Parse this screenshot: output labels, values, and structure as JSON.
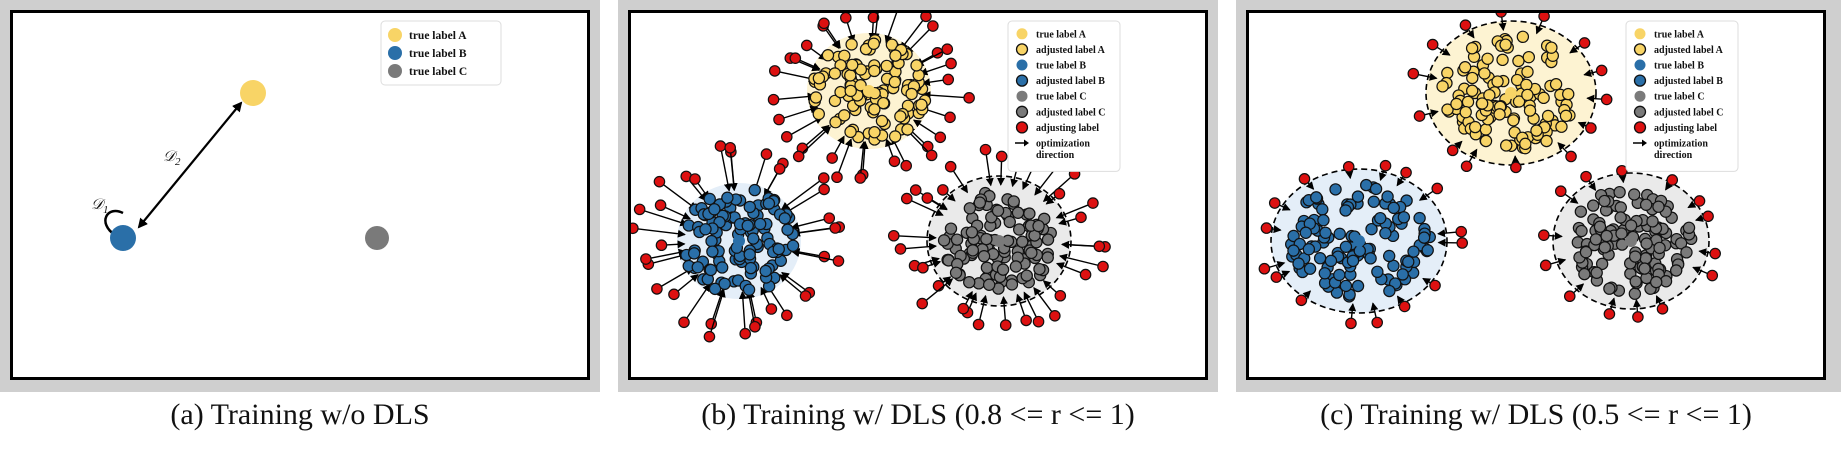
{
  "colors": {
    "label_a": "#f8d466",
    "label_b": "#2a6fa8",
    "label_c": "#7a7a7a",
    "adjusting": "#dd1111",
    "region_a": "#fdf3d2",
    "region_b": "#e4eef8",
    "region_c": "#eaeaea"
  },
  "panels": [
    {
      "caption": "(a) Training w/o DLS",
      "annotations": {
        "d1": "𝒟",
        "d1_sub": "1",
        "d2": "𝒟",
        "d2_sub": "2"
      },
      "legend": [
        {
          "label": "true label A",
          "marker": "dot-a"
        },
        {
          "label": "true label B",
          "marker": "dot-b"
        },
        {
          "label": "true label C",
          "marker": "dot-c"
        }
      ]
    },
    {
      "caption": "(b) Training w/ DLS (0.8 <= r <= 1)",
      "legend": [
        {
          "label": "true label A",
          "marker": "dot-a"
        },
        {
          "label": "adjusted label A",
          "marker": "ring-a"
        },
        {
          "label": "true label B",
          "marker": "dot-b"
        },
        {
          "label": "adjusted label B",
          "marker": "ring-b"
        },
        {
          "label": "true label C",
          "marker": "dot-c"
        },
        {
          "label": "adjusted label C",
          "marker": "ring-c"
        },
        {
          "label": "adjusting label",
          "marker": "ring-red"
        },
        {
          "label": "optimization",
          "label2": "direction",
          "marker": "arrow"
        }
      ]
    },
    {
      "caption": "(c) Training w/ DLS (0.5 <= r <= 1)",
      "legend": [
        {
          "label": "true label A",
          "marker": "dot-a"
        },
        {
          "label": "adjusted label A",
          "marker": "ring-a"
        },
        {
          "label": "true label B",
          "marker": "dot-b"
        },
        {
          "label": "adjusted label B",
          "marker": "ring-b"
        },
        {
          "label": "true label C",
          "marker": "dot-c"
        },
        {
          "label": "adjusted label C",
          "marker": "ring-c"
        },
        {
          "label": "adjusting label",
          "marker": "ring-red"
        },
        {
          "label": "optimization",
          "label2": "direction",
          "marker": "arrow"
        }
      ]
    }
  ]
}
